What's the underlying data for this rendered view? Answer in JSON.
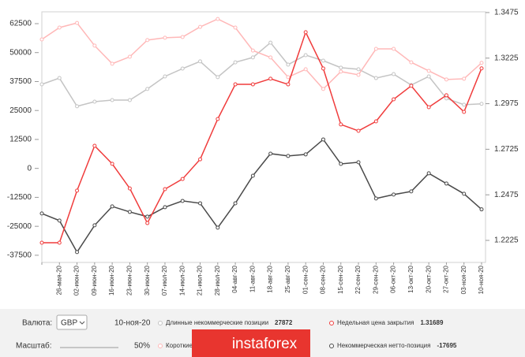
{
  "chart_data": {
    "type": "line",
    "categories": [
      null,
      "26-мая-20",
      "02-июн-20",
      "09-июн-20",
      "16-июн-20",
      "23-июн-20",
      "30-июн-20",
      "07-июл-20",
      "14-июл-20",
      "21-июл-20",
      "28-июл-20",
      "04-авг-20",
      "11-авг-20",
      "18-авг-20",
      "25-авг-20",
      "01-сен-20",
      "08-сен-20",
      "15-сен-20",
      "22-сен-20",
      "29-сен-20",
      "06-окт-20",
      "13-окт-20",
      "20-окт-20",
      "27-окт-20",
      "03-ноя-20",
      "10-ноя-20"
    ],
    "ylim": [
      -40600,
      67600
    ],
    "yticks": [
      62500,
      50000,
      37500,
      25000,
      12500,
      0,
      -12500,
      -25000,
      -37500
    ],
    "y2lim": [
      1.2104,
      1.3479
    ],
    "y2ticks": [
      1.3475,
      1.3225,
      1.2975,
      1.2725,
      1.2475,
      1.2225
    ],
    "grid": false,
    "series": [
      {
        "name": "Длинные некоммерческие позиции",
        "color": "#c4c4c4",
        "legend_value": 27872,
        "values": [
          36300,
          39000,
          26800,
          28800,
          29500,
          29500,
          34300,
          39700,
          43100,
          46200,
          39400,
          45800,
          47900,
          54300,
          44800,
          48900,
          46500,
          43500,
          42800,
          39000,
          40700,
          36000,
          39700,
          30200,
          27500,
          27872
        ]
      },
      {
        "name": "Короткие некоммерческие позиции",
        "color": "#ffb8b8",
        "values": [
          55700,
          60800,
          62800,
          53000,
          45200,
          48200,
          55400,
          56400,
          56700,
          61100,
          64500,
          60800,
          50900,
          47900,
          39400,
          42800,
          34300,
          41800,
          40400,
          51600,
          51600,
          45800,
          42100,
          38400,
          38700,
          45567
        ]
      },
      {
        "name": "Некоммерческая нетто-позиция",
        "color": "#4a4a4a",
        "legend_value": -17695,
        "values": [
          -19470,
          -22530,
          -36140,
          -24580,
          -16420,
          -18800,
          -20830,
          -16760,
          -14040,
          -15060,
          -25600,
          -15060,
          -3160,
          6360,
          5360,
          6040,
          12500,
          1950,
          2640,
          -13010,
          -11310,
          -9950,
          -2130,
          -6550,
          -10970,
          -17695
        ]
      },
      {
        "name": "Недельная цена закрытия",
        "color": "#f03c3c",
        "axis": "y2",
        "legend_value": 1.31689,
        "values": [
          1.2212,
          1.2212,
          1.2498,
          1.2744,
          1.2645,
          1.251,
          1.232,
          1.2506,
          1.2562,
          1.267,
          1.2891,
          1.3081,
          1.3081,
          1.3112,
          1.3081,
          1.3367,
          1.3168,
          1.2861,
          1.2826,
          1.2878,
          1.2999,
          1.3073,
          1.2956,
          1.3021,
          1.293,
          1.31689
        ]
      }
    ]
  },
  "controls": {
    "currency_label": "Валюта:",
    "currency": "GBP",
    "date": "10-ноя-20",
    "scale_label": "Масштаб:",
    "scale": "50%"
  },
  "watermark": "instaforex"
}
